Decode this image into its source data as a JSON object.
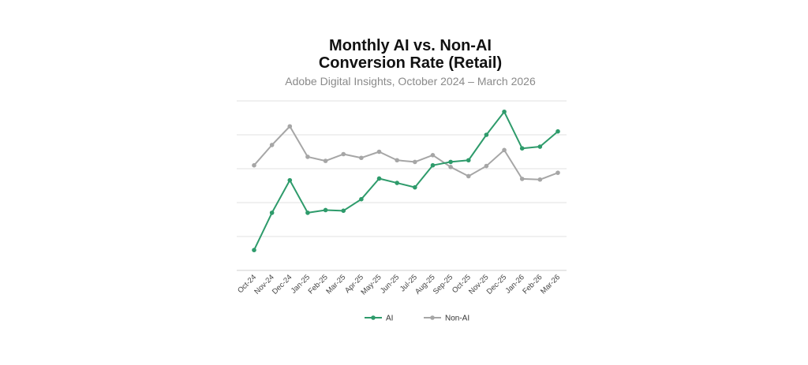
{
  "chart_data": {
    "type": "line",
    "title_line1": "Monthly AI vs. Non-AI",
    "title_line2": "Conversion Rate (Retail)",
    "subtitle": "Adobe Digital Insights, October 2024 – March 2026",
    "categories": [
      "Oct-24",
      "Nov-24",
      "Dec-24",
      "Jan-25",
      "Feb-25",
      "Mar-25",
      "Apr-25",
      "May-25",
      "Jun-25",
      "Jul-25",
      "Aug-25",
      "Sep-25",
      "Oct-25",
      "Nov-25",
      "Dec-25",
      "Jan-26",
      "Feb-26",
      "Mar-26"
    ],
    "y_axis_labels_shown": false,
    "grid": true,
    "legend_position": "bottom",
    "series": [
      {
        "name": "AI",
        "color": "#2e9b6b",
        "values": [
          0.6,
          1.7,
          2.66,
          1.7,
          1.78,
          1.76,
          2.1,
          2.71,
          2.58,
          2.45,
          3.1,
          3.2,
          3.25,
          4.0,
          4.68,
          3.6,
          3.65,
          4.1
        ]
      },
      {
        "name": "Non-AI",
        "color": "#a6a6a6",
        "values": [
          3.1,
          3.7,
          4.25,
          3.35,
          3.23,
          3.43,
          3.32,
          3.5,
          3.25,
          3.2,
          3.4,
          3.05,
          2.78,
          3.08,
          3.55,
          2.7,
          2.68,
          2.88
        ]
      }
    ]
  }
}
